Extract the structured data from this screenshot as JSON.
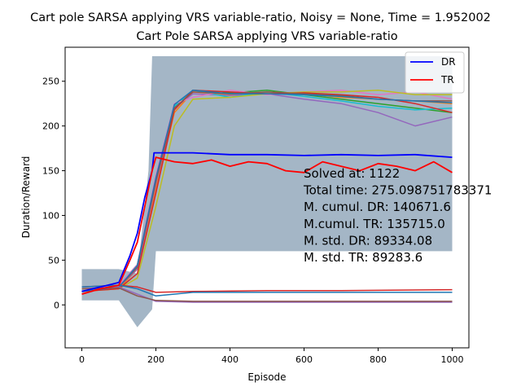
{
  "chart_data": {
    "type": "line",
    "suptitle": "Cart pole SARSA applying VRS variable-ratio, Noisy = None, Time = 1.952002",
    "title": "Cart Pole SARSA applying VRS variable-ratio",
    "xlabel": "Episode",
    "ylabel": "Duration/Reward",
    "xlim": [
      -45,
      1045
    ],
    "ylim": [
      -48,
      288
    ],
    "xticks": [
      0,
      200,
      400,
      600,
      800,
      1000
    ],
    "yticks": [
      0,
      50,
      100,
      150,
      200,
      250
    ],
    "grid": false,
    "legend_position": "top-right",
    "legend": [
      {
        "name": "DR",
        "color": "#0000ff"
      },
      {
        "name": "TR",
        "color": "#ff0000"
      }
    ],
    "band": {
      "color": "#9fb2c3",
      "upper": [
        [
          0,
          40
        ],
        [
          100,
          40
        ],
        [
          150,
          35
        ],
        [
          180,
          150
        ],
        [
          190,
          278
        ],
        [
          1000,
          278
        ]
      ],
      "lower": [
        [
          0,
          5
        ],
        [
          100,
          5
        ],
        [
          150,
          -25
        ],
        [
          190,
          -5
        ],
        [
          200,
          60
        ],
        [
          1000,
          60
        ]
      ]
    },
    "series": [
      {
        "name": "DR",
        "color": "#0000ff",
        "width": 1.8,
        "x": [
          0,
          50,
          100,
          130,
          150,
          170,
          190,
          195,
          300,
          400,
          500,
          600,
          700,
          800,
          900,
          1000
        ],
        "y": [
          15,
          20,
          25,
          55,
          80,
          120,
          150,
          170,
          170,
          168,
          168,
          167,
          168,
          167,
          168,
          165
        ]
      },
      {
        "name": "TR",
        "color": "#ff0000",
        "width": 1.8,
        "x": [
          0,
          50,
          100,
          130,
          150,
          170,
          190,
          200,
          250,
          300,
          350,
          400,
          450,
          500,
          550,
          600,
          650,
          700,
          750,
          800,
          850,
          900,
          950,
          1000
        ],
        "y": [
          12,
          18,
          22,
          50,
          70,
          110,
          150,
          165,
          160,
          158,
          162,
          155,
          160,
          158,
          150,
          148,
          160,
          155,
          150,
          158,
          155,
          150,
          160,
          148
        ]
      },
      {
        "color": "#2ca02c",
        "width": 1.5,
        "x": [
          0,
          100,
          150,
          200,
          250,
          300,
          400,
          500,
          600,
          700,
          800,
          900,
          1000
        ],
        "y": [
          15,
          20,
          45,
          140,
          220,
          240,
          237,
          240,
          235,
          230,
          225,
          220,
          215
        ]
      },
      {
        "color": "#ff7f0e",
        "width": 1.5,
        "x": [
          0,
          100,
          150,
          200,
          250,
          300,
          400,
          500,
          600,
          700,
          800,
          900,
          1000
        ],
        "y": [
          15,
          18,
          40,
          130,
          215,
          238,
          235,
          238,
          236,
          232,
          230,
          228,
          225
        ]
      },
      {
        "color": "#9467bd",
        "width": 1.5,
        "x": [
          0,
          100,
          150,
          200,
          250,
          300,
          400,
          500,
          600,
          700,
          800,
          900,
          1000
        ],
        "y": [
          15,
          20,
          40,
          135,
          220,
          236,
          234,
          236,
          230,
          225,
          215,
          200,
          210
        ]
      },
      {
        "color": "#17becf",
        "width": 1.5,
        "x": [
          0,
          100,
          150,
          200,
          250,
          300,
          400,
          500,
          600,
          700,
          800,
          900,
          1000
        ],
        "y": [
          15,
          22,
          45,
          140,
          222,
          240,
          232,
          238,
          233,
          228,
          222,
          218,
          220
        ]
      },
      {
        "color": "#e377c2",
        "width": 1.5,
        "x": [
          0,
          100,
          150,
          200,
          250,
          300,
          400,
          500,
          600,
          700,
          800,
          900,
          1000
        ],
        "y": [
          15,
          22,
          45,
          145,
          225,
          232,
          240,
          235,
          238,
          240,
          235,
          238,
          230
        ]
      },
      {
        "color": "#bcbd22",
        "width": 1.5,
        "x": [
          0,
          100,
          150,
          200,
          250,
          300,
          400,
          500,
          600,
          700,
          800,
          900,
          1000
        ],
        "y": [
          15,
          18,
          30,
          110,
          200,
          230,
          232,
          236,
          238,
          238,
          240,
          235,
          235
        ]
      },
      {
        "color": "#d62728",
        "width": 1.5,
        "x": [
          0,
          100,
          150,
          200,
          250,
          300,
          400,
          500,
          600,
          700,
          800,
          900,
          1000
        ],
        "y": [
          15,
          18,
          35,
          125,
          218,
          240,
          238,
          236,
          237,
          235,
          232,
          225,
          215
        ]
      },
      {
        "color": "#8c564b",
        "width": 1.5,
        "x": [
          0,
          100,
          150,
          200,
          250,
          300,
          400,
          500,
          600,
          700,
          800,
          900,
          1000
        ],
        "y": [
          15,
          20,
          42,
          138,
          220,
          238,
          236,
          238,
          236,
          234,
          230,
          228,
          228
        ]
      },
      {
        "color": "#1f77b4",
        "width": 1.5,
        "x": [
          0,
          100,
          150,
          200,
          250,
          300,
          400,
          500,
          600,
          700,
          800,
          900,
          1000
        ],
        "y": [
          15,
          20,
          44,
          142,
          224,
          240,
          236,
          236,
          235,
          233,
          230,
          228,
          226
        ]
      },
      {
        "color": "#d62728",
        "width": 1.5,
        "x": [
          0,
          100,
          150,
          200,
          300,
          500,
          700,
          1000
        ],
        "y": [
          20,
          22,
          20,
          14,
          15,
          16,
          16,
          17
        ]
      },
      {
        "color": "#1f77b4",
        "width": 1.5,
        "x": [
          0,
          100,
          150,
          200,
          300,
          500,
          700,
          1000
        ],
        "y": [
          20,
          22,
          18,
          10,
          14,
          14,
          14,
          14
        ]
      },
      {
        "color": "#9467bd",
        "width": 1.5,
        "x": [
          0,
          100,
          150,
          200,
          300,
          500,
          700,
          1000
        ],
        "y": [
          18,
          20,
          12,
          4,
          3,
          3,
          3,
          3
        ]
      },
      {
        "color": "#8c564b",
        "width": 1.5,
        "x": [
          0,
          100,
          150,
          200,
          300,
          500,
          700,
          1000
        ],
        "y": [
          18,
          19,
          10,
          5,
          4,
          4,
          4,
          4
        ]
      }
    ],
    "annotations": [
      "Solved at: 1122",
      "Total time: 275.098751783371",
      "M. cumul. DR: 140671.6",
      "M.cumul. TR: 135715.0",
      "M. std. DR: 89334.08",
      "M. std. TR: 89283.6"
    ]
  }
}
